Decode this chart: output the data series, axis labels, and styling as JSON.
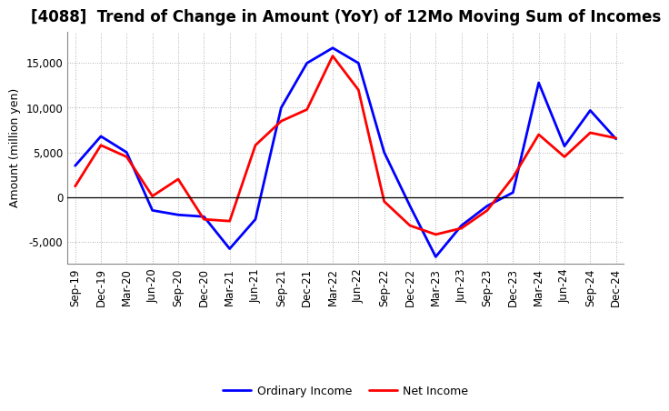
{
  "title": "[4088]  Trend of Change in Amount (YoY) of 12Mo Moving Sum of Incomes",
  "ylabel": "Amount (million yen)",
  "background_color": "#ffffff",
  "grid_color": "#999999",
  "x_labels": [
    "Sep-19",
    "Dec-19",
    "Mar-20",
    "Jun-20",
    "Sep-20",
    "Dec-20",
    "Mar-21",
    "Jun-21",
    "Sep-21",
    "Dec-21",
    "Mar-22",
    "Jun-22",
    "Sep-22",
    "Dec-22",
    "Mar-23",
    "Jun-23",
    "Sep-23",
    "Dec-23",
    "Mar-24",
    "Jun-24",
    "Sep-24",
    "Dec-24"
  ],
  "ordinary_income": [
    3500,
    6800,
    5000,
    -1500,
    -2000,
    -2200,
    -5800,
    -2500,
    10000,
    15000,
    16700,
    15000,
    5000,
    -1000,
    -6700,
    -3200,
    -1000,
    500,
    12800,
    5700,
    9700,
    6500
  ],
  "net_income": [
    1200,
    5800,
    4500,
    100,
    2000,
    -2500,
    -2700,
    5800,
    8500,
    9800,
    15800,
    12000,
    -500,
    -3200,
    -4200,
    -3500,
    -1500,
    2200,
    7000,
    4500,
    7200,
    6600
  ],
  "ordinary_color": "#0000ff",
  "net_color": "#ff0000",
  "ylim": [
    -7500,
    18500
  ],
  "yticks": [
    -5000,
    0,
    5000,
    10000,
    15000
  ],
  "line_width": 2.0,
  "title_fontsize": 12,
  "label_fontsize": 9,
  "tick_fontsize": 8.5,
  "legend_fontsize": 9
}
